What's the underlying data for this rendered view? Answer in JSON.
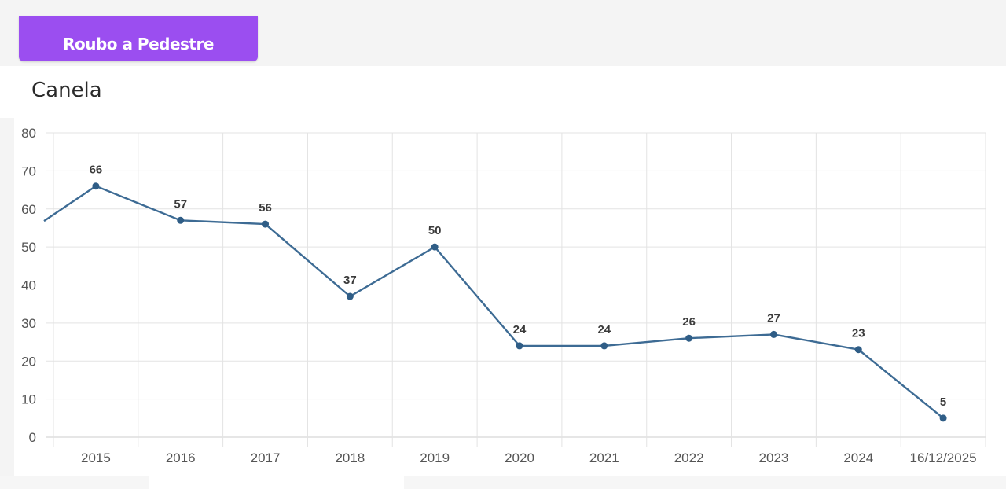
{
  "tab": {
    "label": "Roubo a Pedestre"
  },
  "chart_data": {
    "type": "line",
    "title": "Canela",
    "categories": [
      "2015",
      "2016",
      "2017",
      "2018",
      "2019",
      "2020",
      "2021",
      "2022",
      "2023",
      "2024",
      "16/12/2025"
    ],
    "values": [
      66,
      57,
      56,
      37,
      50,
      24,
      24,
      26,
      27,
      23,
      5
    ],
    "left_offscreen_value": 51,
    "ylim": [
      0,
      80
    ],
    "yticks": [
      0,
      10,
      20,
      30,
      40,
      50,
      60,
      70,
      80
    ],
    "grid": true,
    "data_labels": true,
    "line_color": "#3d6b94",
    "point_color": "#2f5d86",
    "accent_color": "#9b4ef0"
  }
}
